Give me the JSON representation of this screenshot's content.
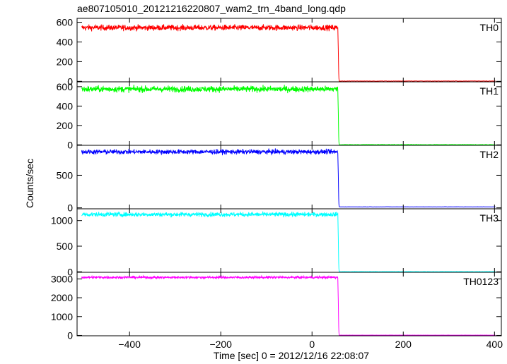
{
  "title": "ae807105010_20121216220807_wam2_trn_4band_long.qdp",
  "chart_data": {
    "type": "line",
    "title": "ae807105010_20121216220807_wam2_trn_4band_long.qdp",
    "xlabel": "Time [sec] 0 = 2012/12/16 22:08:07",
    "ylabel": "Counts/sec",
    "xlim": [
      -515,
      415
    ],
    "x_ticks": [
      -400,
      -200,
      0,
      200,
      400
    ],
    "x_tick_labels": [
      "−400",
      "−200",
      "0",
      "200",
      "400"
    ],
    "drop_time": 57,
    "x_start": -505,
    "x_end": 403,
    "grid": false,
    "panels": [
      {
        "name": "TH0",
        "color": "#ff0000",
        "ylim": [
          -5,
          640
        ],
        "yticks": [
          0,
          200,
          400,
          600
        ],
        "before_level": 545,
        "noise": 20,
        "after_level": 3
      },
      {
        "name": "TH1",
        "color": "#00ff00",
        "ylim": [
          -5,
          650
        ],
        "yticks": [
          0,
          200,
          400,
          600
        ],
        "before_level": 575,
        "noise": 22,
        "after_level": 2
      },
      {
        "name": "TH2",
        "color": "#0000ff",
        "ylim": [
          -15,
          960
        ],
        "yticks": [
          0,
          500
        ],
        "before_level": 860,
        "noise": 25,
        "after_level": 15
      },
      {
        "name": "TH3",
        "color": "#00ffff",
        "ylim": [
          -10,
          1230
        ],
        "yticks": [
          0,
          500,
          1000
        ],
        "before_level": 1120,
        "noise": 30,
        "after_level": 3
      },
      {
        "name": "TH0123",
        "color": "#ff00ff",
        "ylim": [
          -20,
          3350
        ],
        "yticks": [
          0,
          1000,
          2000,
          3000
        ],
        "before_level": 3080,
        "noise": 45,
        "after_level": 15
      }
    ]
  }
}
